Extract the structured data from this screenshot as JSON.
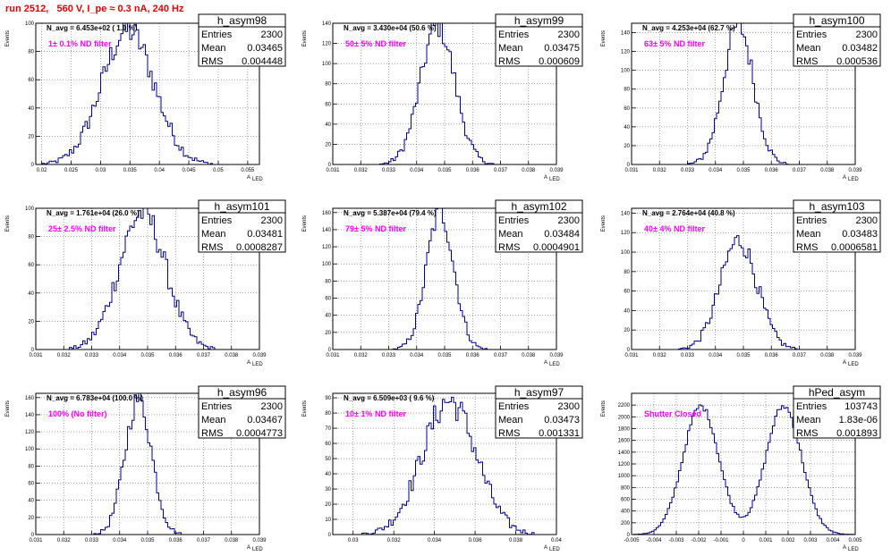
{
  "canvas_title": "run 2512,   560 V, I_pe ≈ 0.3 nA, 240 Hz",
  "axis_labels": {
    "y": "Events",
    "x_main": "A",
    "x_sub": "LED"
  },
  "colors": {
    "hist": "#00008b",
    "annotation": "#ff00ff",
    "title": "#e00000"
  },
  "stat_labels": {
    "entries": "Entries",
    "mean": "Mean",
    "rms": "RMS"
  },
  "chart_data": [
    {
      "type": "histogram",
      "name": "h_asym98",
      "title": "N_avg = 6.453e+02 ( 1.0 %)",
      "annotation": "1± 0.1% ND filter",
      "stats": {
        "entries": "2300",
        "mean": "0.03465",
        "rms": "0.004448"
      },
      "xlim": [
        0.019,
        0.057
      ],
      "ylim": [
        0,
        100
      ],
      "xticks": [
        0.02,
        0.025,
        0.03,
        0.035,
        0.04,
        0.045,
        0.05,
        0.055
      ],
      "xtick_labels": [
        "0.02",
        "0.025",
        "0.03",
        "0.035",
        "0.04",
        "0.045",
        "0.05",
        "0.055"
      ],
      "yticks": [
        0,
        20,
        40,
        60,
        80,
        100
      ],
      "ytick_labels": [
        "0",
        "20",
        "40",
        "60",
        "80",
        "100"
      ],
      "mean": 0.03465,
      "sigma": 0.004448,
      "entries": 2300,
      "peak": 95,
      "nbins": 100
    },
    {
      "type": "histogram",
      "name": "h_asym99",
      "title": "N_avg = 3.430e+04 (50.6 %)",
      "annotation": "50± 5% ND filter",
      "stats": {
        "entries": "2300",
        "mean": "0.03475",
        "rms": "0.000609"
      },
      "xlim": [
        0.031,
        0.039
      ],
      "ylim": [
        0,
        140
      ],
      "xticks": [
        0.031,
        0.032,
        0.033,
        0.034,
        0.035,
        0.036,
        0.037,
        0.038,
        0.039
      ],
      "xtick_labels": [
        "0.031",
        "0.032",
        "0.033",
        "0.034",
        "0.035",
        "0.036",
        "0.037",
        "0.038",
        "0.039"
      ],
      "yticks": [
        0,
        20,
        40,
        60,
        80,
        100,
        120,
        140
      ],
      "ytick_labels": [
        "0",
        "20",
        "40",
        "60",
        "80",
        "100",
        "120",
        "140"
      ],
      "mean": 0.03475,
      "sigma": 0.000609,
      "entries": 2300,
      "peak": 138,
      "nbins": 100
    },
    {
      "type": "histogram",
      "name": "h_asym100",
      "title": "N_avg = 4.253e+04 (62.7 %)",
      "annotation": "63± 5% ND filter",
      "stats": {
        "entries": "2300",
        "mean": "0.03482",
        "rms": "0.000536"
      },
      "xlim": [
        0.031,
        0.039
      ],
      "ylim": [
        0,
        150
      ],
      "xticks": [
        0.031,
        0.032,
        0.033,
        0.034,
        0.035,
        0.036,
        0.037,
        0.038,
        0.039
      ],
      "xtick_labels": [
        "0.031",
        "0.032",
        "0.033",
        "0.034",
        "0.035",
        "0.036",
        "0.037",
        "0.038",
        "0.039"
      ],
      "yticks": [
        0,
        20,
        40,
        60,
        80,
        100,
        120,
        140
      ],
      "ytick_labels": [
        "0",
        "20",
        "40",
        "60",
        "80",
        "100",
        "120",
        "140"
      ],
      "mean": 0.03482,
      "sigma": 0.000536,
      "entries": 2300,
      "peak": 148,
      "nbins": 100
    },
    {
      "type": "histogram",
      "name": "h_asym101",
      "title": "N_avg = 1.761e+04 (26.0 %)",
      "annotation": "25± 2.5% ND filter",
      "stats": {
        "entries": "2300",
        "mean": "0.03481",
        "rms": "0.0008287"
      },
      "xlim": [
        0.031,
        0.039
      ],
      "ylim": [
        0,
        100
      ],
      "xticks": [
        0.031,
        0.032,
        0.033,
        0.034,
        0.035,
        0.036,
        0.037,
        0.038,
        0.039
      ],
      "xtick_labels": [
        "0.031",
        "0.032",
        "0.033",
        "0.034",
        "0.035",
        "0.036",
        "0.037",
        "0.038",
        "0.039"
      ],
      "yticks": [
        0,
        20,
        40,
        60,
        80,
        100
      ],
      "ytick_labels": [
        "0",
        "20",
        "40",
        "60",
        "80",
        "100"
      ],
      "mean": 0.03481,
      "sigma": 0.0008287,
      "entries": 2300,
      "peak": 97,
      "nbins": 100
    },
    {
      "type": "histogram",
      "name": "h_asym102",
      "title": "N_avg = 5.387e+04 (79.4 %)",
      "annotation": "79± 5% ND filter",
      "stats": {
        "entries": "2300",
        "mean": "0.03484",
        "rms": "0.0004901"
      },
      "xlim": [
        0.031,
        0.039
      ],
      "ylim": [
        0,
        165
      ],
      "xticks": [
        0.031,
        0.032,
        0.033,
        0.034,
        0.035,
        0.036,
        0.037,
        0.038,
        0.039
      ],
      "xtick_labels": [
        "0.031",
        "0.032",
        "0.033",
        "0.034",
        "0.035",
        "0.036",
        "0.037",
        "0.038",
        "0.039"
      ],
      "yticks": [
        0,
        20,
        40,
        60,
        80,
        100,
        120,
        140,
        160
      ],
      "ytick_labels": [
        "0",
        "20",
        "40",
        "60",
        "80",
        "100",
        "120",
        "140",
        "160"
      ],
      "mean": 0.03484,
      "sigma": 0.0004901,
      "entries": 2300,
      "peak": 160,
      "nbins": 100
    },
    {
      "type": "histogram",
      "name": "h_asym103",
      "title": "N_avg = 2.764e+04 (40.8 %)",
      "annotation": "40± 4% ND filter",
      "stats": {
        "entries": "2300",
        "mean": "0.03483",
        "rms": "0.0006581"
      },
      "xlim": [
        0.031,
        0.039
      ],
      "ylim": [
        0,
        145
      ],
      "xticks": [
        0.031,
        0.032,
        0.033,
        0.034,
        0.035,
        0.036,
        0.037,
        0.038,
        0.039
      ],
      "xtick_labels": [
        "0.031",
        "0.032",
        "0.033",
        "0.034",
        "0.035",
        "0.036",
        "0.037",
        "0.038",
        "0.039"
      ],
      "yticks": [
        0,
        20,
        40,
        60,
        80,
        100,
        120,
        140
      ],
      "ytick_labels": [
        "0",
        "20",
        "40",
        "60",
        "80",
        "100",
        "120",
        "140"
      ],
      "mean": 0.03483,
      "sigma": 0.0006581,
      "entries": 2300,
      "peak": 112,
      "nbins": 100
    },
    {
      "type": "histogram",
      "name": "h_asym96",
      "title": "N_avg = 6.783e+04 (100.0 %)",
      "annotation": "100% (No filter)",
      "stats": {
        "entries": "2300",
        "mean": "0.03467",
        "rms": "0.0004773"
      },
      "xlim": [
        0.031,
        0.039
      ],
      "ylim": [
        0,
        165
      ],
      "xticks": [
        0.031,
        0.032,
        0.033,
        0.034,
        0.035,
        0.036,
        0.037,
        0.038,
        0.039
      ],
      "xtick_labels": [
        "0.031",
        "0.032",
        "0.033",
        "0.034",
        "0.035",
        "0.036",
        "0.037",
        "0.038",
        "0.039"
      ],
      "yticks": [
        0,
        20,
        40,
        60,
        80,
        100,
        120,
        140,
        160
      ],
      "ytick_labels": [
        "0",
        "20",
        "40",
        "60",
        "80",
        "100",
        "120",
        "140",
        "160"
      ],
      "mean": 0.03467,
      "sigma": 0.0004773,
      "entries": 2300,
      "peak": 158,
      "nbins": 100
    },
    {
      "type": "histogram",
      "name": "h_asym97",
      "title": "N_avg = 6.509e+03 ( 9.6 %)",
      "annotation": "10± 1% ND filter",
      "stats": {
        "entries": "2300",
        "mean": "0.03473",
        "rms": "0.001331"
      },
      "xlim": [
        0.029,
        0.04
      ],
      "ylim": [
        0,
        93
      ],
      "xticks": [
        0.03,
        0.032,
        0.034,
        0.036,
        0.038,
        0.04
      ],
      "xtick_labels": [
        "0.03",
        "0.032",
        "0.034",
        "0.036",
        "0.038",
        "0.04"
      ],
      "yticks": [
        0,
        10,
        20,
        30,
        40,
        50,
        60,
        70,
        80,
        90
      ],
      "ytick_labels": [
        "0",
        "10",
        "20",
        "30",
        "40",
        "50",
        "60",
        "70",
        "80",
        "90"
      ],
      "mean": 0.03473,
      "sigma": 0.001331,
      "entries": 2300,
      "peak": 88,
      "nbins": 100
    },
    {
      "type": "histogram",
      "name": "hPed_asym",
      "title": "",
      "annotation": "Shutter Closed",
      "stats": {
        "entries": "103743",
        "mean": "1.83e-06",
        "rms": "0.001893"
      },
      "xlim": [
        -0.005,
        0.005
      ],
      "ylim": [
        0,
        2400
      ],
      "xticks": [
        -0.005,
        -0.004,
        -0.003,
        -0.002,
        -0.001,
        0,
        0.001,
        0.002,
        0.003,
        0.004,
        0.005
      ],
      "xtick_labels": [
        "-0.005",
        "-0.004",
        "-0.003",
        "-0.002",
        "-0.001",
        "0",
        "0.001",
        "0.002",
        "0.003",
        "0.004",
        "0.005"
      ],
      "yticks": [
        0,
        200,
        400,
        600,
        800,
        1000,
        1200,
        1400,
        1600,
        1800,
        2000,
        2200
      ],
      "ytick_labels": [
        "0",
        "200",
        "400",
        "600",
        "800",
        "1000",
        "1200",
        "1400",
        "1600",
        "1800",
        "2000",
        "2200"
      ],
      "bimodal": true,
      "peak_positions": [
        -0.0019,
        0.0018
      ],
      "peak_width": 0.0008,
      "peak": 2250,
      "nbins": 100
    }
  ]
}
